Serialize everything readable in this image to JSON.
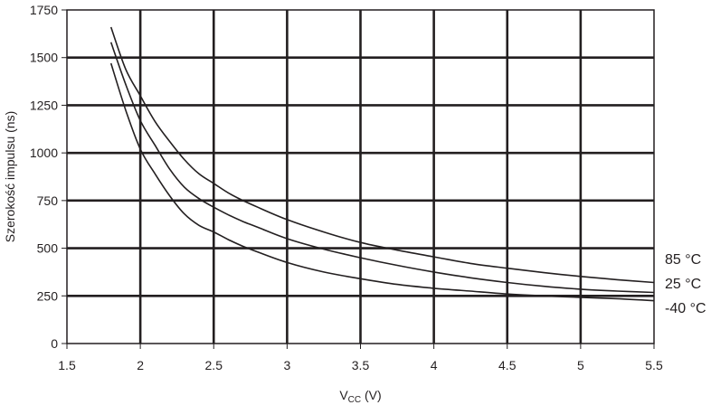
{
  "chart_data": {
    "type": "line",
    "xlabel_main": "V",
    "xlabel_sub": "CC",
    "xlabel_unit": " (V)",
    "ylabel": "Szerokość impulsu (ns)",
    "xlim": [
      1.5,
      5.5
    ],
    "ylim": [
      0,
      1750
    ],
    "x_ticks": [
      "1.5",
      "2",
      "2.5",
      "3",
      "3.5",
      "4",
      "4.5",
      "5",
      "5.5"
    ],
    "y_ticks": [
      "0",
      "250",
      "500",
      "750",
      "1000",
      "1250",
      "1500",
      "1750"
    ],
    "grid": true,
    "series": [
      {
        "name": "85 °C",
        "x": [
          1.8,
          1.9,
          2.0,
          2.1,
          2.2,
          2.3,
          2.4,
          2.5,
          2.6,
          2.7,
          2.8,
          3.0,
          3.25,
          3.5,
          3.75,
          4.0,
          4.25,
          4.5,
          4.75,
          5.0,
          5.25,
          5.5
        ],
        "values": [
          1660,
          1440,
          1300,
          1165,
          1060,
          965,
          890,
          840,
          790,
          750,
          715,
          650,
          585,
          530,
          490,
          455,
          420,
          395,
          372,
          352,
          335,
          320
        ]
      },
      {
        "name": "25 °C",
        "x": [
          1.8,
          1.9,
          2.0,
          2.1,
          2.2,
          2.3,
          2.4,
          2.5,
          2.6,
          2.7,
          2.8,
          3.0,
          3.25,
          3.5,
          3.75,
          4.0,
          4.25,
          4.5,
          4.75,
          5.0,
          5.25,
          5.5
        ],
        "values": [
          1580,
          1360,
          1170,
          1040,
          915,
          820,
          760,
          715,
          675,
          640,
          610,
          550,
          495,
          450,
          410,
          375,
          345,
          320,
          300,
          285,
          275,
          268
        ]
      },
      {
        "name": "-40 °C",
        "x": [
          1.8,
          1.9,
          2.0,
          2.1,
          2.2,
          2.3,
          2.4,
          2.5,
          2.6,
          2.7,
          2.8,
          3.0,
          3.25,
          3.5,
          3.75,
          4.0,
          4.25,
          4.5,
          4.75,
          5.0,
          5.25,
          5.5
        ],
        "values": [
          1470,
          1225,
          1020,
          890,
          775,
          680,
          620,
          585,
          545,
          510,
          480,
          425,
          375,
          340,
          310,
          290,
          275,
          260,
          250,
          242,
          235,
          225
        ]
      }
    ]
  }
}
